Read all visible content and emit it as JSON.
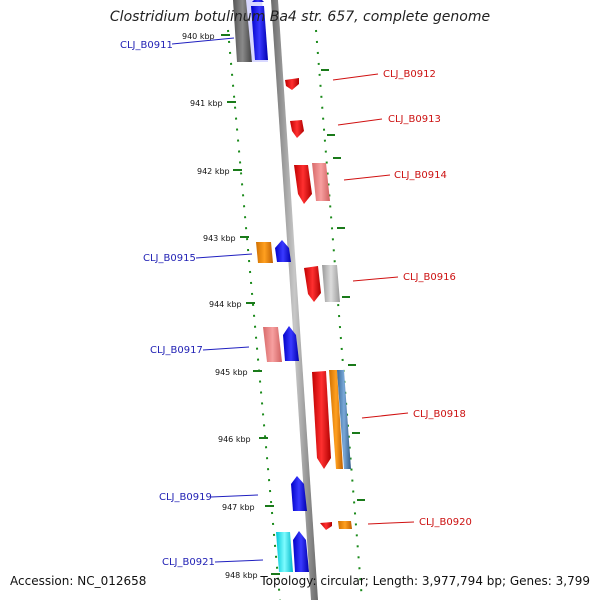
{
  "title": "Clostridium botulinum Ba4 str. 657, complete genome",
  "footer": {
    "accession": "Accession: NC_012658",
    "summary": "Topology: circular; Length: 3,977,794 bp; Genes: 3,799"
  },
  "ticks": [
    "940 kbp",
    "941 kbp",
    "942 kbp",
    "943 kbp",
    "944 kbp",
    "945 kbp",
    "946 kbp",
    "947 kbp",
    "948 kbp"
  ],
  "genes": [
    {
      "label": "CLJ_B0911",
      "strand": "left",
      "color": "#1f1fb4"
    },
    {
      "label": "CLJ_B0912",
      "strand": "right",
      "color": "#cc1111"
    },
    {
      "label": "CLJ_B0913",
      "strand": "right",
      "color": "#cc1111"
    },
    {
      "label": "CLJ_B0914",
      "strand": "right",
      "color": "#cc1111"
    },
    {
      "label": "CLJ_B0915",
      "strand": "left",
      "color": "#1f1fb4"
    },
    {
      "label": "CLJ_B0916",
      "strand": "right",
      "color": "#cc1111"
    },
    {
      "label": "CLJ_B0917",
      "strand": "left",
      "color": "#1f1fb4"
    },
    {
      "label": "CLJ_B0918",
      "strand": "right",
      "color": "#cc1111"
    },
    {
      "label": "CLJ_B0919",
      "strand": "left",
      "color": "#1f1fb4"
    },
    {
      "label": "CLJ_B0920",
      "strand": "right",
      "color": "#cc1111"
    },
    {
      "label": "CLJ_B0921",
      "strand": "left",
      "color": "#1f1fb4"
    }
  ],
  "colors": {
    "axis": "#888888",
    "tick": "#1a7a1a",
    "blue": "#1010ee",
    "red": "#ee1111",
    "pink": "#f08a8a",
    "orange": "#f08c00",
    "grey": "#bbbbbb",
    "dark_grey": "#666666",
    "cyan": "#22e8f0",
    "steel": "#4a7fb5"
  }
}
